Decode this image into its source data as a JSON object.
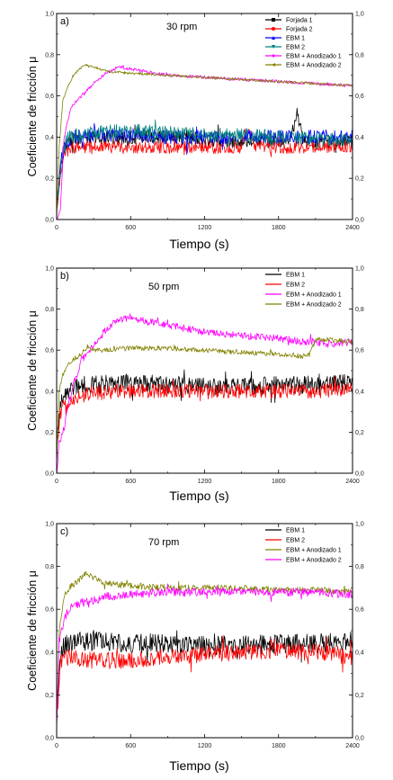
{
  "chart_data": [
    {
      "type": "line",
      "panel": "a)",
      "speed": "30 rpm",
      "xlabel": "Tiempo (s)",
      "ylabel": "Coeficiente de fricción μ",
      "xlim": [
        0,
        2400
      ],
      "ylim": [
        0,
        1.0
      ],
      "xticks": [
        "0",
        "600",
        "1200",
        "1800",
        "2400"
      ],
      "yticks": [
        "0,0",
        "0,2",
        "0,4",
        "0,6",
        "0,8",
        "1,0"
      ],
      "legend_position": "top-right",
      "series": [
        {
          "name": "Forjada 1",
          "color": "#000000",
          "marker": "square",
          "x": [
            0,
            30,
            60,
            150,
            300,
            600,
            900,
            1200,
            1500,
            1800,
            1900,
            1950,
            2000,
            2100,
            2400
          ],
          "y": [
            0.05,
            0.25,
            0.36,
            0.39,
            0.4,
            0.4,
            0.4,
            0.39,
            0.38,
            0.38,
            0.4,
            0.51,
            0.38,
            0.37,
            0.38
          ],
          "noise": 0.035
        },
        {
          "name": "Forjada 2",
          "color": "#ff0000",
          "marker": "circle",
          "x": [
            0,
            30,
            60,
            150,
            300,
            600,
            900,
            1200,
            1500,
            1550,
            1600,
            1800,
            2100,
            2400
          ],
          "y": [
            0.05,
            0.22,
            0.33,
            0.35,
            0.35,
            0.35,
            0.35,
            0.35,
            0.35,
            0.45,
            0.36,
            0.35,
            0.35,
            0.35
          ],
          "noise": 0.03
        },
        {
          "name": "EBM 1",
          "color": "#0000ff",
          "marker": "triangle-up",
          "x": [
            0,
            40,
            80,
            150,
            300,
            600,
            900,
            1200,
            1500,
            1800,
            2100,
            2400
          ],
          "y": [
            0.05,
            0.3,
            0.38,
            0.4,
            0.41,
            0.41,
            0.4,
            0.4,
            0.4,
            0.4,
            0.4,
            0.41
          ],
          "noise": 0.035
        },
        {
          "name": "EBM 2",
          "color": "#008080",
          "marker": "triangle-down",
          "x": [
            0,
            40,
            80,
            150,
            300,
            600,
            900,
            1200,
            1500,
            1800,
            2100,
            2400
          ],
          "y": [
            0.05,
            0.3,
            0.39,
            0.41,
            0.42,
            0.43,
            0.42,
            0.41,
            0.41,
            0.4,
            0.39,
            0.39
          ],
          "noise": 0.035
        },
        {
          "name": "EBM + Anodizado 1",
          "color": "#ff00ff",
          "marker": "diamond",
          "x": [
            0,
            30,
            60,
            120,
            200,
            300,
            400,
            500,
            600,
            900,
            1200,
            1500,
            1800,
            2100,
            2400
          ],
          "y": [
            0.0,
            0.05,
            0.4,
            0.55,
            0.6,
            0.66,
            0.71,
            0.74,
            0.73,
            0.7,
            0.69,
            0.68,
            0.67,
            0.66,
            0.65
          ],
          "noise": 0.008
        },
        {
          "name": "EBM + Anodizado 2",
          "color": "#808000",
          "marker": "triangle-left",
          "x": [
            0,
            20,
            50,
            100,
            150,
            200,
            250,
            300,
            400,
            600,
            900,
            1200,
            1500,
            1800,
            2100,
            2400
          ],
          "y": [
            0.0,
            0.35,
            0.58,
            0.66,
            0.71,
            0.74,
            0.75,
            0.74,
            0.72,
            0.71,
            0.7,
            0.69,
            0.68,
            0.67,
            0.66,
            0.65
          ],
          "noise": 0.006
        }
      ]
    },
    {
      "type": "line",
      "panel": "b)",
      "speed": "50 rpm",
      "xlabel": "Tiempo (s)",
      "ylabel": "Coeficiente de fricción μ",
      "xlim": [
        0,
        2400
      ],
      "ylim": [
        0,
        1.0
      ],
      "xticks": [
        "0",
        "600",
        "1200",
        "1800",
        "2400"
      ],
      "yticks": [
        "0,0",
        "0,2",
        "0,4",
        "0,6",
        "0,8",
        "1,0"
      ],
      "legend_position": "top-right",
      "series": [
        {
          "name": "EBM 1",
          "color": "#000000",
          "x": [
            0,
            30,
            60,
            150,
            300,
            600,
            900,
            1200,
            1500,
            1800,
            2100,
            2400
          ],
          "y": [
            0.1,
            0.35,
            0.4,
            0.42,
            0.43,
            0.44,
            0.43,
            0.42,
            0.42,
            0.43,
            0.43,
            0.44
          ],
          "noise": 0.045
        },
        {
          "name": "EBM 2",
          "color": "#ff0000",
          "x": [
            0,
            30,
            60,
            150,
            300,
            600,
            900,
            1200,
            1500,
            1800,
            2100,
            2400
          ],
          "y": [
            0.1,
            0.28,
            0.33,
            0.37,
            0.39,
            0.4,
            0.4,
            0.4,
            0.4,
            0.4,
            0.4,
            0.41
          ],
          "noise": 0.035
        },
        {
          "name": "EBM + Anodizado 1",
          "color": "#ff00ff",
          "x": [
            0,
            20,
            60,
            120,
            200,
            300,
            400,
            500,
            600,
            800,
            1000,
            1200,
            1500,
            1800,
            2000,
            2100,
            2200,
            2400
          ],
          "y": [
            0.0,
            0.15,
            0.22,
            0.4,
            0.55,
            0.62,
            0.7,
            0.75,
            0.76,
            0.73,
            0.71,
            0.69,
            0.67,
            0.66,
            0.64,
            0.64,
            0.63,
            0.64
          ],
          "noise": 0.018
        },
        {
          "name": "EBM + Anodizado 2",
          "color": "#808000",
          "x": [
            0,
            20,
            60,
            120,
            200,
            250,
            300,
            400,
            600,
            900,
            1200,
            1500,
            1800,
            2000,
            2050,
            2100,
            2200,
            2400
          ],
          "y": [
            0.05,
            0.4,
            0.5,
            0.55,
            0.58,
            0.62,
            0.6,
            0.6,
            0.61,
            0.61,
            0.6,
            0.59,
            0.58,
            0.57,
            0.58,
            0.65,
            0.65,
            0.64
          ],
          "noise": 0.012
        }
      ]
    },
    {
      "type": "line",
      "panel": "c)",
      "speed": "70 rpm",
      "xlabel": "Tiempo (s)",
      "ylabel": "Coeficiente de fricción μ",
      "xlim": [
        0,
        2400
      ],
      "ylim": [
        0,
        1.0
      ],
      "xticks": [
        "0",
        "600",
        "1200",
        "1800",
        "2400"
      ],
      "yticks": [
        "0,0",
        "0,2",
        "0,4",
        "0,6",
        "0,8",
        "1,0"
      ],
      "legend_position": "top-right",
      "series": [
        {
          "name": "EBM 1",
          "color": "#000000",
          "x": [
            0,
            30,
            60,
            150,
            300,
            600,
            900,
            1200,
            1500,
            1800,
            2100,
            2400
          ],
          "y": [
            0.1,
            0.38,
            0.43,
            0.45,
            0.45,
            0.44,
            0.44,
            0.43,
            0.43,
            0.44,
            0.44,
            0.45
          ],
          "noise": 0.045
        },
        {
          "name": "EBM 2",
          "color": "#ff0000",
          "x": [
            0,
            30,
            60,
            150,
            300,
            600,
            900,
            1200,
            1500,
            1800,
            2100,
            2400
          ],
          "y": [
            0.08,
            0.35,
            0.38,
            0.37,
            0.36,
            0.36,
            0.38,
            0.39,
            0.4,
            0.41,
            0.4,
            0.38
          ],
          "noise": 0.04
        },
        {
          "name": "EBM + Anodizado 1",
          "color": "#808000",
          "x": [
            0,
            20,
            60,
            100,
            150,
            200,
            250,
            300,
            400,
            600,
            900,
            1200,
            1500,
            1800,
            2100,
            2400
          ],
          "y": [
            0.05,
            0.5,
            0.66,
            0.7,
            0.72,
            0.75,
            0.77,
            0.75,
            0.72,
            0.71,
            0.7,
            0.7,
            0.7,
            0.69,
            0.69,
            0.68
          ],
          "noise": 0.015
        },
        {
          "name": "EBM + Anodizado 2",
          "color": "#ff00ff",
          "x": [
            0,
            20,
            60,
            100,
            200,
            300,
            400,
            600,
            900,
            1200,
            1500,
            1800,
            2100,
            2400
          ],
          "y": [
            0.05,
            0.45,
            0.55,
            0.6,
            0.63,
            0.64,
            0.66,
            0.67,
            0.68,
            0.68,
            0.68,
            0.68,
            0.68,
            0.67
          ],
          "noise": 0.02
        }
      ]
    }
  ]
}
